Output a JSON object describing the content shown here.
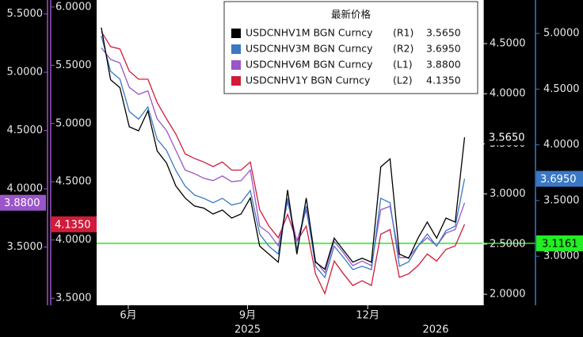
{
  "chart_data": {
    "type": "line",
    "legend_title": "最新价格",
    "x": [
      0,
      1,
      2,
      3,
      4,
      5,
      6,
      7,
      8,
      9,
      10,
      11,
      12,
      13,
      14,
      15,
      16,
      17,
      18,
      19,
      20,
      21,
      22,
      23,
      24,
      25,
      26,
      27,
      28,
      29,
      30,
      31,
      32,
      33,
      34,
      35,
      36,
      37,
      38,
      39
    ],
    "xlim": [
      -0.5,
      41
    ],
    "xticks": [
      {
        "value": 2.9,
        "label": "6月"
      },
      {
        "value": 15.7,
        "label": "9月"
      },
      {
        "value": 28.6,
        "label": "12月"
      }
    ],
    "year_labels": [
      {
        "value": 15.7,
        "label": "2025"
      },
      {
        "value": 35.9,
        "label": "2026"
      }
    ],
    "axes": {
      "L1": {
        "ylim": [
          3.0,
          5.62
        ],
        "yticks": [
          {
            "value": 3.5,
            "label": "3.5000"
          },
          {
            "value": 4.0,
            "label": "4.0000"
          },
          {
            "value": 4.5,
            "label": "4.5000"
          },
          {
            "value": 5.0,
            "label": "5.0000"
          },
          {
            "value": 5.5,
            "label": "5.5000"
          }
        ]
      },
      "L2": {
        "ylim": [
          3.44,
          6.06
        ],
        "yticks": [
          {
            "value": 3.5,
            "label": "3.5000"
          },
          {
            "value": 4.0,
            "label": "4.0000"
          },
          {
            "value": 4.5,
            "label": "4.5000"
          },
          {
            "value": 5.0,
            "label": "5.0000"
          },
          {
            "value": 5.5,
            "label": "5.5000"
          },
          {
            "value": 6.0,
            "label": "6.0000"
          }
        ]
      },
      "R1": {
        "ylim": [
          1.89,
          4.935
        ],
        "yticks": [
          {
            "value": 2.0,
            "label": "2.0000"
          },
          {
            "value": 2.5,
            "label": "2.5000"
          },
          {
            "value": 3.0,
            "label": "3.0000"
          },
          {
            "value": 3.5,
            "label": "3.5000"
          },
          {
            "value": 4.0,
            "label": "4.0000"
          },
          {
            "value": 4.5,
            "label": "4.5000"
          }
        ]
      },
      "R2": {
        "ylim": [
          2.56,
          5.3
        ],
        "yticks": [
          {
            "value": 3.0,
            "label": "3.0000"
          },
          {
            "value": 3.5,
            "label": "3.5000"
          },
          {
            "value": 4.0,
            "label": "4.0000"
          },
          {
            "value": 4.5,
            "label": "4.5000"
          },
          {
            "value": 5.0,
            "label": "5.0000"
          }
        ]
      }
    },
    "series": [
      {
        "name": "USDCNHV1M BGN Curncy",
        "legend_axis": "(R1)",
        "axis": "R1",
        "color": "#000000",
        "last_label": "3.5650",
        "values": [
          4.66,
          4.14,
          4.06,
          3.67,
          3.63,
          3.83,
          3.43,
          3.31,
          3.08,
          2.96,
          2.88,
          2.86,
          2.8,
          2.84,
          2.76,
          2.8,
          2.96,
          2.48,
          2.4,
          2.32,
          3.04,
          2.4,
          2.96,
          2.32,
          2.25,
          2.56,
          2.44,
          2.32,
          2.36,
          2.32,
          3.27,
          3.35,
          2.4,
          2.36,
          2.56,
          2.72,
          2.56,
          2.76,
          2.72,
          3.565
        ]
      },
      {
        "name": "USDCNHV3M BGN Curncy",
        "legend_axis": "(R2)",
        "axis": "R2",
        "color": "#3a78c4",
        "last_label": "3.6950",
        "values": [
          4.98,
          4.66,
          4.59,
          4.3,
          4.23,
          4.34,
          4.05,
          3.95,
          3.77,
          3.63,
          3.55,
          3.52,
          3.48,
          3.52,
          3.46,
          3.48,
          3.59,
          3.2,
          3.09,
          3.02,
          3.52,
          3.06,
          3.45,
          2.91,
          2.81,
          3.09,
          2.99,
          2.88,
          2.91,
          2.88,
          3.52,
          3.48,
          2.91,
          2.95,
          3.09,
          3.2,
          3.09,
          3.23,
          3.27,
          3.695
        ]
      },
      {
        "name": "USDCNHV6M BGN Curncy",
        "legend_axis": "(L1)",
        "axis": "L1",
        "color": "#9a55c8",
        "last_label": "3.8800",
        "values": [
          5.21,
          5.11,
          5.08,
          4.87,
          4.81,
          4.84,
          4.6,
          4.5,
          4.33,
          4.16,
          4.13,
          4.09,
          4.07,
          4.11,
          4.06,
          4.07,
          4.16,
          3.68,
          3.62,
          3.51,
          3.89,
          3.55,
          3.82,
          3.38,
          3.28,
          3.55,
          3.45,
          3.34,
          3.38,
          3.34,
          3.82,
          3.85,
          3.41,
          3.41,
          3.51,
          3.58,
          3.51,
          3.62,
          3.65,
          3.88
        ]
      },
      {
        "name": "USDCNHV1Y BGN Curncy",
        "legend_axis": "(L2)",
        "axis": "L2",
        "color": "#d01c3a",
        "last_label": "4.1350",
        "values": [
          5.79,
          5.66,
          5.64,
          5.45,
          5.38,
          5.38,
          5.18,
          5.04,
          4.91,
          4.74,
          4.7,
          4.67,
          4.63,
          4.67,
          4.6,
          4.6,
          4.67,
          4.26,
          4.12,
          4.02,
          4.22,
          3.99,
          4.12,
          3.71,
          3.54,
          3.82,
          3.71,
          3.61,
          3.65,
          3.61,
          4.05,
          4.09,
          3.68,
          3.71,
          3.78,
          3.88,
          3.82,
          3.92,
          3.95,
          4.135
        ]
      }
    ],
    "reference_line": {
      "value": 3.1161,
      "axis": "R2",
      "color": "#22ee22"
    }
  }
}
